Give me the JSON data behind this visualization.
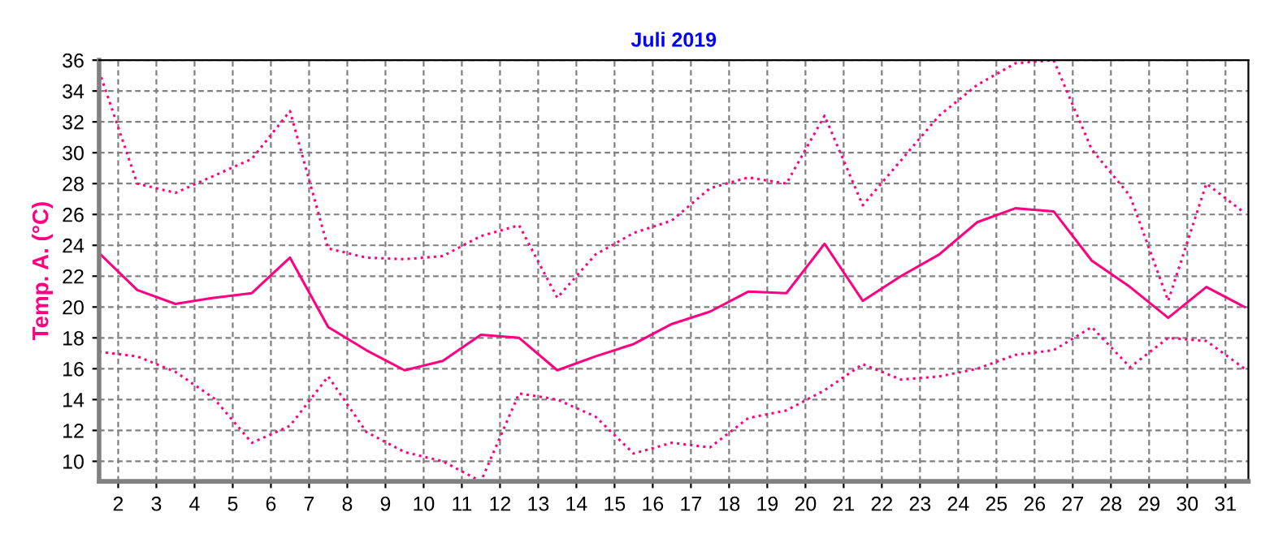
{
  "chart_data": {
    "type": "line",
    "title": "Juli 2019",
    "ylabel": "Temp. A. (°C)",
    "x": [
      1.5,
      2.5,
      3.5,
      4.5,
      5.5,
      6.5,
      7.5,
      8.5,
      9.5,
      10.5,
      11.5,
      12.5,
      13.5,
      14.5,
      15.5,
      16.5,
      17.5,
      18.5,
      19.5,
      20.5,
      21.5,
      22.5,
      23.5,
      24.5,
      25.5,
      26.5,
      27.5,
      28.5,
      29.5,
      30.5,
      31.5
    ],
    "series": [
      {
        "color": "#ff0080",
        "line_style": "dotted",
        "values": [
          35.3,
          28.0,
          27.4,
          28.5,
          29.6,
          32.7,
          23.8,
          23.2,
          23.1,
          23.3,
          24.6,
          25.3,
          20.6,
          23.4,
          24.8,
          25.6,
          27.7,
          28.4,
          28.0,
          32.4,
          26.6,
          29.5,
          32.4,
          34.4,
          35.8,
          36.0,
          30.2,
          27.2,
          20.4,
          28.0,
          26.1
        ]
      },
      {
        "color": "#ff0080",
        "line_style": "solid",
        "values": [
          23.5,
          21.1,
          20.2,
          20.6,
          20.9,
          23.2,
          18.7,
          17.2,
          15.9,
          16.5,
          18.2,
          18.0,
          15.9,
          16.8,
          17.6,
          18.9,
          19.7,
          21.0,
          20.9,
          24.1,
          20.4,
          22.0,
          23.4,
          25.5,
          26.4,
          26.2,
          23.0,
          21.3,
          19.3,
          21.3,
          20.0
        ]
      },
      {
        "color": "#ff0080",
        "line_style": "dotted",
        "values": [
          17.1,
          16.8,
          15.8,
          14.1,
          11.2,
          12.3,
          15.5,
          11.9,
          10.6,
          10.0,
          8.7,
          14.4,
          14.0,
          12.9,
          10.5,
          11.2,
          10.9,
          12.8,
          13.3,
          14.6,
          16.3,
          15.3,
          15.5,
          16.0,
          16.9,
          17.2,
          18.7,
          16.1,
          18.0,
          17.8,
          16.0
        ]
      }
    ],
    "xlim": [
      1.5,
      31.6
    ],
    "xticks": [
      2,
      3,
      4,
      5,
      6,
      7,
      8,
      9,
      10,
      11,
      12,
      13,
      14,
      15,
      16,
      17,
      18,
      19,
      20,
      21,
      22,
      23,
      24,
      25,
      26,
      27,
      28,
      29,
      30,
      31
    ],
    "ylim": [
      8.7,
      36
    ],
    "yticks": [
      10,
      12,
      14,
      16,
      18,
      20,
      22,
      24,
      26,
      28,
      30,
      32,
      34,
      36
    ],
    "grid": true
  }
}
